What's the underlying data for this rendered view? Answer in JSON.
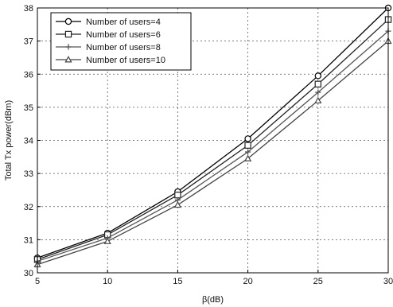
{
  "chart_data": {
    "type": "line",
    "title": "",
    "xlabel": "β(dB)",
    "ylabel": "Total Tx power(dBm)",
    "xlim": [
      5,
      30
    ],
    "ylim": [
      30,
      38
    ],
    "x_ticks": [
      5,
      10,
      15,
      20,
      25,
      30
    ],
    "y_ticks": [
      30,
      31,
      32,
      33,
      34,
      35,
      36,
      37,
      38
    ],
    "grid": true,
    "legend_position": "top-left",
    "x": [
      5,
      10,
      15,
      20,
      25,
      30
    ],
    "series": [
      {
        "name": "Number of users=4",
        "marker": "circle",
        "values": [
          30.45,
          31.2,
          32.45,
          34.05,
          35.95,
          38.0
        ]
      },
      {
        "name": "Number of users=6",
        "marker": "square",
        "values": [
          30.4,
          31.15,
          32.35,
          33.85,
          35.7,
          37.65
        ]
      },
      {
        "name": "Number of users=8",
        "marker": "plus",
        "values": [
          30.35,
          31.05,
          32.2,
          33.65,
          35.45,
          37.3
        ]
      },
      {
        "name": "Number of users=10",
        "marker": "triangle",
        "values": [
          30.25,
          30.95,
          32.05,
          33.45,
          35.2,
          37.0
        ]
      }
    ]
  }
}
